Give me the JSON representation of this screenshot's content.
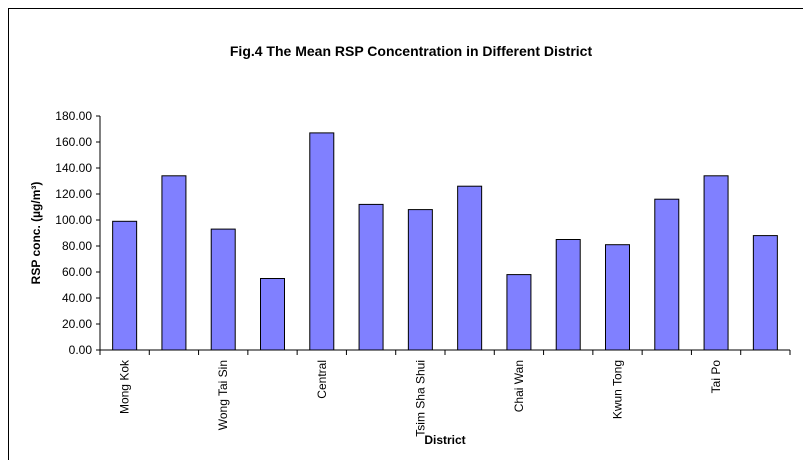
{
  "chart_data": {
    "type": "bar",
    "title": "Fig.4 The Mean RSP Concentration in Different District",
    "x_label": "District",
    "y_label": "RSP conc. (µg/m³)",
    "categories": [
      "Mong Kok",
      null,
      "Wong Tai Sin",
      null,
      "Central",
      null,
      "Tsim Sha Shui",
      null,
      "Chai Wan",
      null,
      "Kwun Tong",
      null,
      "Tai Po",
      null
    ],
    "values": [
      99,
      134,
      93,
      55,
      167,
      112,
      108,
      126,
      58,
      85,
      81,
      116,
      134,
      88
    ],
    "color": "#8080ff",
    "ylim": [
      0,
      180
    ],
    "yticks": [
      {
        "value": 0,
        "label": "0.00"
      },
      {
        "value": 20,
        "label": "20.00"
      },
      {
        "value": 40,
        "label": "40.00"
      },
      {
        "value": 60,
        "label": "60.00"
      },
      {
        "value": 80,
        "label": "80.00"
      },
      {
        "value": 100,
        "label": "100.00"
      },
      {
        "value": 120,
        "label": "120.00"
      },
      {
        "value": 140,
        "label": "140.00"
      },
      {
        "value": 160,
        "label": "160.00"
      },
      {
        "value": 180,
        "label": "180.00"
      }
    ],
    "grid": false
  }
}
